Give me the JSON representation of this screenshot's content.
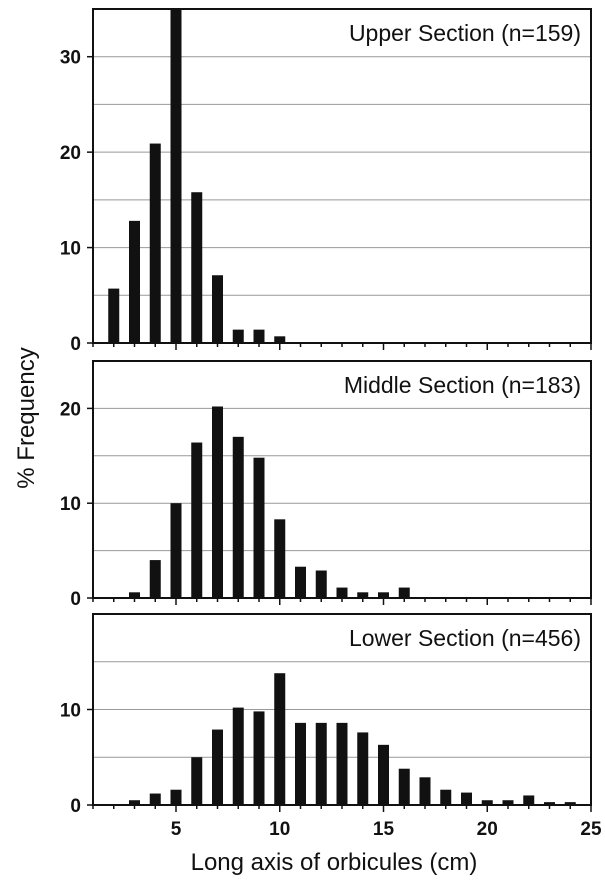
{
  "figure": {
    "ylabel": "% Frequency",
    "xlabel": "Long axis of orbicules (cm)",
    "bar_color": "#111111",
    "grid_color": "#999999",
    "axis_color": "#111111"
  },
  "chart_data": [
    {
      "type": "bar",
      "title": "Upper Section (n=159)",
      "xlim": [
        1,
        25
      ],
      "ylim": [
        0,
        35
      ],
      "yticks": [
        0,
        10,
        20,
        30
      ],
      "xtick_labels_shown": false,
      "gridlines": [
        5,
        10,
        15,
        20,
        25,
        30,
        35
      ],
      "x": [
        2,
        3,
        4,
        5,
        6,
        7,
        8,
        9,
        10
      ],
      "values": [
        5.7,
        12.8,
        20.9,
        35,
        15.8,
        7.1,
        1.4,
        1.4,
        0.7
      ]
    },
    {
      "type": "bar",
      "title": "Middle Section (n=183)",
      "xlim": [
        1,
        25
      ],
      "ylim": [
        0,
        25
      ],
      "yticks": [
        0,
        10,
        20
      ],
      "xtick_labels_shown": false,
      "gridlines": [
        5,
        10,
        15,
        20
      ],
      "x": [
        3,
        4,
        5,
        6,
        7,
        8,
        9,
        10,
        11,
        12,
        13,
        14,
        15,
        16
      ],
      "values": [
        0.6,
        4.0,
        10.0,
        16.4,
        20.2,
        17.0,
        14.8,
        8.3,
        3.3,
        2.9,
        1.1,
        0.6,
        0.6,
        1.1
      ]
    },
    {
      "type": "bar",
      "title": "Lower Section (n=456)",
      "xlim": [
        1,
        25
      ],
      "ylim": [
        0,
        20
      ],
      "yticks": [
        0,
        10
      ],
      "xtick_labels_shown": true,
      "xticks": [
        5,
        10,
        15,
        20,
        25
      ],
      "gridlines": [
        5,
        10,
        15
      ],
      "x": [
        3,
        4,
        5,
        6,
        7,
        8,
        9,
        10,
        11,
        12,
        13,
        14,
        15,
        16,
        17,
        18,
        19,
        20,
        21,
        22,
        23,
        24
      ],
      "values": [
        0.5,
        1.2,
        1.6,
        5.0,
        7.9,
        10.2,
        9.8,
        13.8,
        8.6,
        8.6,
        8.6,
        7.6,
        6.3,
        3.8,
        2.9,
        1.6,
        1.3,
        0.5,
        0.5,
        1.0,
        0.3,
        0.3
      ]
    }
  ]
}
